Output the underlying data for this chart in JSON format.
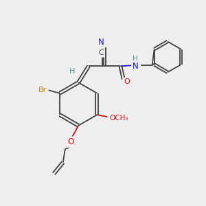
{
  "bg_color": "#eeeeee",
  "atom_colors": {
    "C": "#404040",
    "H": "#509090",
    "N": "#1a1acc",
    "O": "#cc1010",
    "Br": "#cc8800"
  },
  "figsize": [
    3.0,
    3.0
  ],
  "dpi": 100
}
